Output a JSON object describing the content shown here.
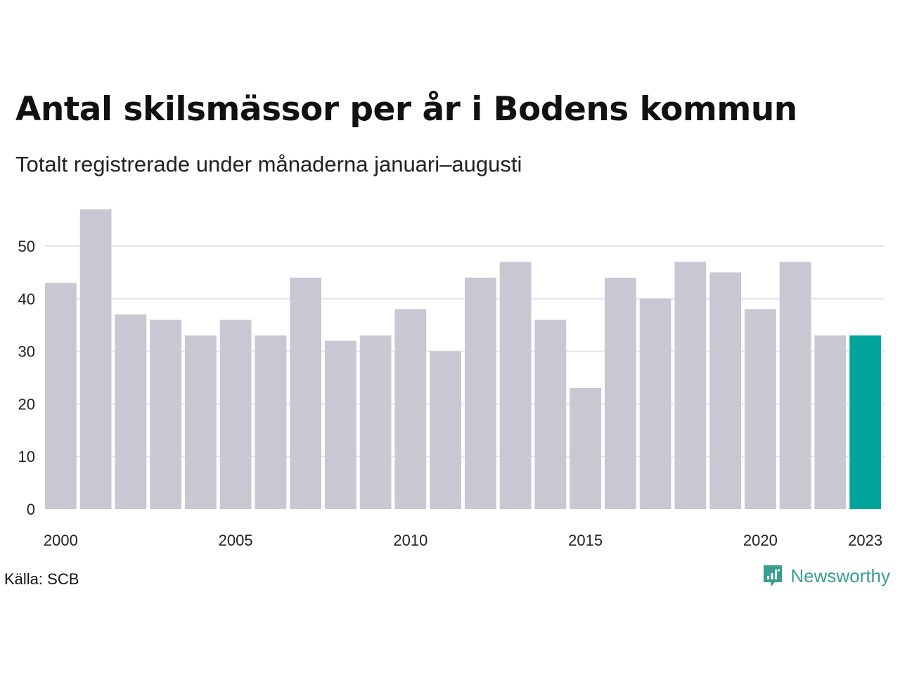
{
  "title": "Antal skilsmässor per år i Bodens kommun",
  "subtitle": "Totalt registrerade under månaderna januari–augusti",
  "source": "Källa: SCB",
  "brand": {
    "name": "Newsworthy",
    "icon": "newsworthy-logo-icon"
  },
  "colors": {
    "bar": "#c8c7d2",
    "highlight": "#00a499",
    "grid": "#e4e4e8",
    "brand": "#3a9e8e"
  },
  "chart_data": {
    "type": "bar",
    "title": "Antal skilsmässor per år i Bodens kommun",
    "subtitle": "Totalt registrerade under månaderna januari–augusti",
    "xlabel": "",
    "ylabel": "",
    "categories": [
      2000,
      2001,
      2002,
      2003,
      2004,
      2005,
      2006,
      2007,
      2008,
      2009,
      2010,
      2011,
      2012,
      2013,
      2014,
      2015,
      2016,
      2017,
      2018,
      2019,
      2020,
      2021,
      2022,
      2023
    ],
    "values": [
      43,
      57,
      37,
      36,
      33,
      36,
      33,
      44,
      32,
      33,
      38,
      30,
      44,
      47,
      36,
      23,
      44,
      40,
      47,
      45,
      38,
      47,
      33,
      33
    ],
    "highlight": [
      2023
    ],
    "ylim": [
      0,
      57
    ],
    "yticks": [
      0,
      10,
      20,
      30,
      40,
      50
    ],
    "xticks": [
      "2000",
      "2005",
      "2010",
      "2015",
      "2020",
      "2023"
    ],
    "grid": true,
    "legend": "none"
  }
}
